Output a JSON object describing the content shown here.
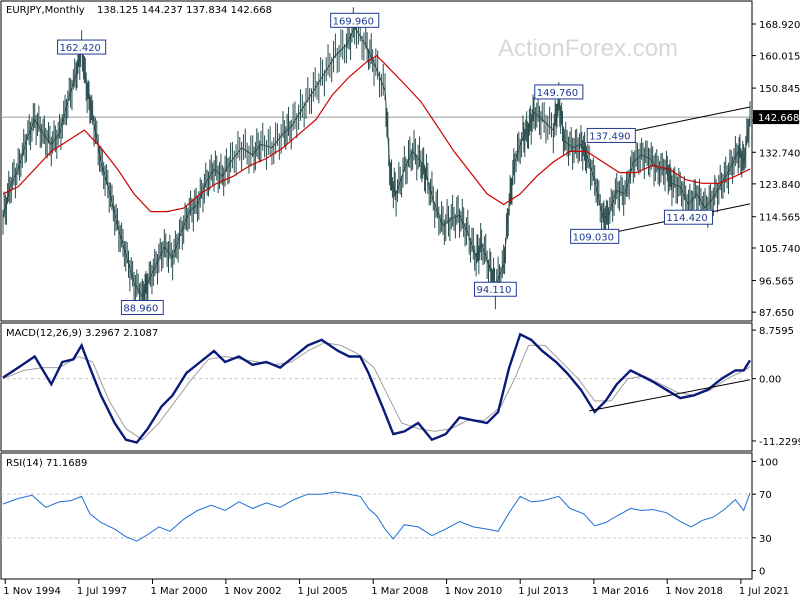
{
  "chart_data": {
    "type": "line",
    "header": {
      "symbol": "EURJPY,Monthly",
      "ohlc": "138.125 144.237 137.834 142.668"
    },
    "watermark": "ActionForex.com",
    "x_ticks": [
      "1 Nov 1994",
      "1 Jul 1997",
      "1 Mar 2000",
      "1 Nov 2002",
      "1 Jul 2005",
      "1 Mar 2008",
      "1 Nov 2010",
      "1 Jul 2013",
      "1 Mar 2016",
      "1 Nov 2018",
      "1 Jul 2021"
    ],
    "x_ticks_t": [
      1994.83,
      1997.5,
      2000.17,
      2002.83,
      2005.5,
      2008.17,
      2010.83,
      2013.5,
      2016.17,
      2018.83,
      2021.5
    ],
    "x_range": [
      1994.75,
      2021.83
    ],
    "price": {
      "y_ticks": [
        "168.920",
        "160.015",
        "150.845",
        "141.795",
        "132.740",
        "123.840",
        "114.565",
        "105.740",
        "96.565",
        "87.650"
      ],
      "y_tick_values": [
        168.92,
        160.015,
        150.845,
        141.795,
        132.74,
        123.84,
        114.565,
        105.74,
        96.565,
        87.65
      ],
      "ylim": [
        86.0,
        174.0
      ],
      "current_label": "142.668",
      "current_value": 142.668,
      "close": [
        [
          1994.75,
          114
        ],
        [
          1995.0,
          123
        ],
        [
          1995.3,
          128
        ],
        [
          1995.6,
          136
        ],
        [
          1995.9,
          142
        ],
        [
          1996.2,
          138
        ],
        [
          1996.5,
          135
        ],
        [
          1996.8,
          138
        ],
        [
          1997.1,
          147
        ],
        [
          1997.4,
          155
        ],
        [
          1997.6,
          162
        ],
        [
          1997.8,
          150
        ],
        [
          1998.0,
          143
        ],
        [
          1998.3,
          130
        ],
        [
          1998.6,
          122
        ],
        [
          1998.9,
          112
        ],
        [
          1999.2,
          104
        ],
        [
          1999.5,
          96
        ],
        [
          1999.8,
          92
        ],
        [
          2000.0,
          96
        ],
        [
          2000.3,
          101
        ],
        [
          2000.6,
          106
        ],
        [
          2000.9,
          103
        ],
        [
          2001.2,
          110
        ],
        [
          2001.5,
          116
        ],
        [
          2001.8,
          118
        ],
        [
          2002.1,
          124
        ],
        [
          2002.4,
          128
        ],
        [
          2002.7,
          126
        ],
        [
          2003.0,
          130
        ],
        [
          2003.4,
          134
        ],
        [
          2003.8,
          132
        ],
        [
          2004.1,
          135
        ],
        [
          2004.5,
          134
        ],
        [
          2004.9,
          138
        ],
        [
          2005.2,
          140
        ],
        [
          2005.6,
          145
        ],
        [
          2006.0,
          150
        ],
        [
          2006.4,
          155
        ],
        [
          2006.8,
          160
        ],
        [
          2007.2,
          163
        ],
        [
          2007.5,
          168
        ],
        [
          2007.9,
          163
        ],
        [
          2008.2,
          158
        ],
        [
          2008.6,
          150
        ],
        [
          2008.8,
          125
        ],
        [
          2009.0,
          121
        ],
        [
          2009.3,
          128
        ],
        [
          2009.6,
          133
        ],
        [
          2009.9,
          130
        ],
        [
          2010.1,
          126
        ],
        [
          2010.4,
          118
        ],
        [
          2010.7,
          112
        ],
        [
          2011.0,
          114
        ],
        [
          2011.3,
          115
        ],
        [
          2011.6,
          110
        ],
        [
          2011.9,
          103
        ],
        [
          2012.1,
          107
        ],
        [
          2012.4,
          100
        ],
        [
          2012.6,
          95
        ],
        [
          2012.9,
          101
        ],
        [
          2013.1,
          118
        ],
        [
          2013.3,
          130
        ],
        [
          2013.6,
          137
        ],
        [
          2013.8,
          139
        ],
        [
          2014.0,
          144
        ],
        [
          2014.3,
          142
        ],
        [
          2014.7,
          139
        ],
        [
          2014.9,
          147
        ],
        [
          2015.1,
          136
        ],
        [
          2015.4,
          134
        ],
        [
          2015.7,
          135
        ],
        [
          2015.9,
          132
        ],
        [
          2016.2,
          125
        ],
        [
          2016.5,
          114
        ],
        [
          2016.7,
          115
        ],
        [
          2017.0,
          122
        ],
        [
          2017.3,
          121
        ],
        [
          2017.6,
          130
        ],
        [
          2017.9,
          132
        ],
        [
          2018.2,
          131
        ],
        [
          2018.5,
          128
        ],
        [
          2018.8,
          128
        ],
        [
          2019.0,
          124
        ],
        [
          2019.3,
          123
        ],
        [
          2019.6,
          118
        ],
        [
          2019.9,
          121
        ],
        [
          2020.2,
          117
        ],
        [
          2020.5,
          120
        ],
        [
          2020.8,
          124
        ],
        [
          2021.1,
          128
        ],
        [
          2021.4,
          133
        ],
        [
          2021.6,
          130
        ],
        [
          2021.83,
          142.668
        ]
      ],
      "ma": [
        [
          1994.75,
          121
        ],
        [
          1995.3,
          123
        ],
        [
          1995.9,
          128
        ],
        [
          1996.5,
          133
        ],
        [
          1997.1,
          136
        ],
        [
          1997.7,
          139
        ],
        [
          1998.3,
          134
        ],
        [
          1998.9,
          128
        ],
        [
          1999.5,
          121
        ],
        [
          2000.1,
          116
        ],
        [
          2000.7,
          116
        ],
        [
          2001.3,
          117
        ],
        [
          2001.9,
          121
        ],
        [
          2002.5,
          124
        ],
        [
          2003.1,
          126
        ],
        [
          2003.7,
          129
        ],
        [
          2004.3,
          131
        ],
        [
          2004.9,
          134
        ],
        [
          2005.5,
          138
        ],
        [
          2006.1,
          142
        ],
        [
          2006.7,
          149
        ],
        [
          2007.3,
          154
        ],
        [
          2007.9,
          158
        ],
        [
          2008.3,
          160
        ],
        [
          2008.8,
          156
        ],
        [
          2009.3,
          152
        ],
        [
          2009.9,
          147
        ],
        [
          2010.5,
          140
        ],
        [
          2011.1,
          133
        ],
        [
          2011.7,
          127
        ],
        [
          2012.3,
          121
        ],
        [
          2012.9,
          118
        ],
        [
          2013.5,
          121
        ],
        [
          2014.1,
          126
        ],
        [
          2014.7,
          130
        ],
        [
          2015.3,
          133
        ],
        [
          2015.9,
          133
        ],
        [
          2016.5,
          130
        ],
        [
          2017.1,
          127
        ],
        [
          2017.7,
          127
        ],
        [
          2018.3,
          129
        ],
        [
          2018.9,
          128
        ],
        [
          2019.5,
          125
        ],
        [
          2020.1,
          124
        ],
        [
          2020.7,
          124
        ],
        [
          2021.3,
          126
        ],
        [
          2021.83,
          128
        ]
      ],
      "channel_upper": [
        [
          2016.8,
          137.49
        ],
        [
          2021.83,
          145.5
        ]
      ],
      "channel_lower": [
        [
          2016.2,
          109.03
        ],
        [
          2021.83,
          118.2
        ]
      ],
      "labels": [
        {
          "text": "162.420",
          "t": 1997.6,
          "v": 162.42
        },
        {
          "text": "169.960",
          "t": 2007.5,
          "v": 169.96
        },
        {
          "text": "88.960",
          "t": 1999.8,
          "v": 88.96
        },
        {
          "text": "94.110",
          "t": 2012.6,
          "v": 94.11
        },
        {
          "text": "149.760",
          "t": 2014.9,
          "v": 149.76
        },
        {
          "text": "137.490",
          "t": 2016.8,
          "v": 137.49
        },
        {
          "text": "109.030",
          "t": 2016.2,
          "v": 109.03
        },
        {
          "text": "114.420",
          "t": 2019.6,
          "v": 114.42
        }
      ]
    },
    "macd": {
      "label": "MACD(12,26,9) 3.2967 2.1087",
      "y_ticks": [
        "8.7595",
        "0.00",
        "-11.2299"
      ],
      "y_tick_values": [
        8.7595,
        0,
        -11.2299
      ],
      "ylim": [
        -12.5,
        9.5
      ],
      "main": [
        [
          1994.75,
          0.2
        ],
        [
          1995.3,
          2
        ],
        [
          1995.9,
          4
        ],
        [
          1996.5,
          -1
        ],
        [
          1996.9,
          3
        ],
        [
          1997.3,
          3.5
        ],
        [
          1997.6,
          6
        ],
        [
          1997.9,
          2
        ],
        [
          1998.3,
          -3
        ],
        [
          1998.8,
          -8
        ],
        [
          1999.2,
          -11
        ],
        [
          1999.6,
          -11.5
        ],
        [
          2000.0,
          -9
        ],
        [
          2000.5,
          -5
        ],
        [
          2000.9,
          -3
        ],
        [
          2001.4,
          1
        ],
        [
          2001.9,
          3
        ],
        [
          2002.4,
          5
        ],
        [
          2002.8,
          3
        ],
        [
          2003.3,
          4
        ],
        [
          2003.8,
          2.5
        ],
        [
          2004.3,
          3
        ],
        [
          2004.8,
          2
        ],
        [
          2005.3,
          4
        ],
        [
          2005.8,
          6
        ],
        [
          2006.3,
          7
        ],
        [
          2006.9,
          5
        ],
        [
          2007.3,
          4
        ],
        [
          2007.7,
          4
        ],
        [
          2008.0,
          1
        ],
        [
          2008.5,
          -5
        ],
        [
          2008.9,
          -10
        ],
        [
          2009.3,
          -9.5
        ],
        [
          2009.8,
          -8
        ],
        [
          2010.3,
          -11
        ],
        [
          2010.8,
          -10
        ],
        [
          2011.3,
          -7
        ],
        [
          2011.8,
          -7.5
        ],
        [
          2012.3,
          -8
        ],
        [
          2012.7,
          -6
        ],
        [
          2013.1,
          2
        ],
        [
          2013.5,
          8
        ],
        [
          2013.9,
          7
        ],
        [
          2014.3,
          5
        ],
        [
          2014.8,
          3
        ],
        [
          2015.2,
          1
        ],
        [
          2015.7,
          -2
        ],
        [
          2016.2,
          -6
        ],
        [
          2016.6,
          -4
        ],
        [
          2017.0,
          -1
        ],
        [
          2017.5,
          1.5
        ],
        [
          2017.9,
          0.5
        ],
        [
          2018.3,
          -0.5
        ],
        [
          2018.8,
          -2
        ],
        [
          2019.3,
          -3.5
        ],
        [
          2019.8,
          -3
        ],
        [
          2020.3,
          -2
        ],
        [
          2020.8,
          0
        ],
        [
          2021.3,
          1.5
        ],
        [
          2021.6,
          1.5
        ],
        [
          2021.83,
          3.2967
        ]
      ],
      "signal": [
        [
          1994.75,
          0
        ],
        [
          1995.5,
          1.5
        ],
        [
          1996.2,
          2
        ],
        [
          1996.8,
          2
        ],
        [
          1997.5,
          4
        ],
        [
          1998.0,
          3
        ],
        [
          1998.6,
          -4
        ],
        [
          1999.2,
          -9
        ],
        [
          1999.8,
          -11
        ],
        [
          2000.4,
          -8
        ],
        [
          2001.0,
          -4
        ],
        [
          2001.6,
          0
        ],
        [
          2002.2,
          3.5
        ],
        [
          2002.8,
          4
        ],
        [
          2003.4,
          3.5
        ],
        [
          2004.0,
          3
        ],
        [
          2004.6,
          2.5
        ],
        [
          2005.2,
          3
        ],
        [
          2005.8,
          5
        ],
        [
          2006.4,
          6.5
        ],
        [
          2007.0,
          6
        ],
        [
          2007.6,
          4.5
        ],
        [
          2008.2,
          2
        ],
        [
          2008.7,
          -3
        ],
        [
          2009.2,
          -8
        ],
        [
          2009.8,
          -9
        ],
        [
          2010.4,
          -9.5
        ],
        [
          2011.0,
          -9
        ],
        [
          2011.6,
          -7.5
        ],
        [
          2012.2,
          -7.5
        ],
        [
          2012.8,
          -5
        ],
        [
          2013.3,
          0
        ],
        [
          2013.8,
          6
        ],
        [
          2014.4,
          6
        ],
        [
          2015.0,
          3
        ],
        [
          2015.6,
          0
        ],
        [
          2016.2,
          -4
        ],
        [
          2016.8,
          -4
        ],
        [
          2017.4,
          0
        ],
        [
          2018.0,
          0.5
        ],
        [
          2018.6,
          -1
        ],
        [
          2019.2,
          -2.5
        ],
        [
          2019.8,
          -3
        ],
        [
          2020.4,
          -2
        ],
        [
          2021.0,
          0
        ],
        [
          2021.5,
          1.2
        ],
        [
          2021.83,
          2.1087
        ]
      ],
      "trendline": [
        [
          2016.0,
          -5.8
        ],
        [
          2021.83,
          -0.2
        ]
      ]
    },
    "rsi": {
      "label": "RSI(14) 71.1689",
      "y_ticks": [
        "100",
        "70",
        "30",
        "0"
      ],
      "y_tick_values": [
        100,
        70,
        30,
        0
      ],
      "ylim": [
        0,
        100
      ],
      "levels": [
        70,
        30
      ],
      "values": [
        [
          1994.75,
          61
        ],
        [
          1995.3,
          66
        ],
        [
          1995.8,
          69
        ],
        [
          1996.3,
          58
        ],
        [
          1996.8,
          63
        ],
        [
          1997.2,
          64
        ],
        [
          1997.6,
          68
        ],
        [
          1997.9,
          52
        ],
        [
          1998.3,
          44
        ],
        [
          1998.8,
          38
        ],
        [
          1999.2,
          31
        ],
        [
          1999.6,
          27
        ],
        [
          2000.0,
          33
        ],
        [
          2000.4,
          40
        ],
        [
          2000.8,
          36
        ],
        [
          2001.3,
          47
        ],
        [
          2001.8,
          55
        ],
        [
          2002.3,
          60
        ],
        [
          2002.8,
          55
        ],
        [
          2003.3,
          63
        ],
        [
          2003.8,
          57
        ],
        [
          2004.3,
          62
        ],
        [
          2004.8,
          58
        ],
        [
          2005.3,
          65
        ],
        [
          2005.8,
          70
        ],
        [
          2006.3,
          70
        ],
        [
          2006.8,
          72
        ],
        [
          2007.3,
          70
        ],
        [
          2007.7,
          68
        ],
        [
          2008.0,
          57
        ],
        [
          2008.3,
          50
        ],
        [
          2008.6,
          38
        ],
        [
          2008.9,
          29
        ],
        [
          2009.3,
          42
        ],
        [
          2009.8,
          40
        ],
        [
          2010.3,
          32
        ],
        [
          2010.8,
          38
        ],
        [
          2011.3,
          45
        ],
        [
          2011.8,
          40
        ],
        [
          2012.3,
          38
        ],
        [
          2012.7,
          36
        ],
        [
          2013.1,
          53
        ],
        [
          2013.5,
          68
        ],
        [
          2013.9,
          63
        ],
        [
          2014.3,
          64
        ],
        [
          2014.9,
          68
        ],
        [
          2015.3,
          57
        ],
        [
          2015.8,
          52
        ],
        [
          2016.2,
          41
        ],
        [
          2016.6,
          44
        ],
        [
          2017.0,
          50
        ],
        [
          2017.5,
          57
        ],
        [
          2017.9,
          55
        ],
        [
          2018.3,
          56
        ],
        [
          2018.8,
          53
        ],
        [
          2019.3,
          45
        ],
        [
          2019.7,
          40
        ],
        [
          2020.1,
          46
        ],
        [
          2020.5,
          49
        ],
        [
          2020.9,
          56
        ],
        [
          2021.3,
          65
        ],
        [
          2021.6,
          55
        ],
        [
          2021.83,
          71.1689
        ]
      ]
    },
    "colors": {
      "price": "#2a4d4d",
      "ma": "#cc0000",
      "macd": "#0a1a7a",
      "signal": "#a0a0a0",
      "rsi": "#1e6fd6",
      "grid": "#c8c8c8",
      "label": "#1f3a93"
    }
  }
}
